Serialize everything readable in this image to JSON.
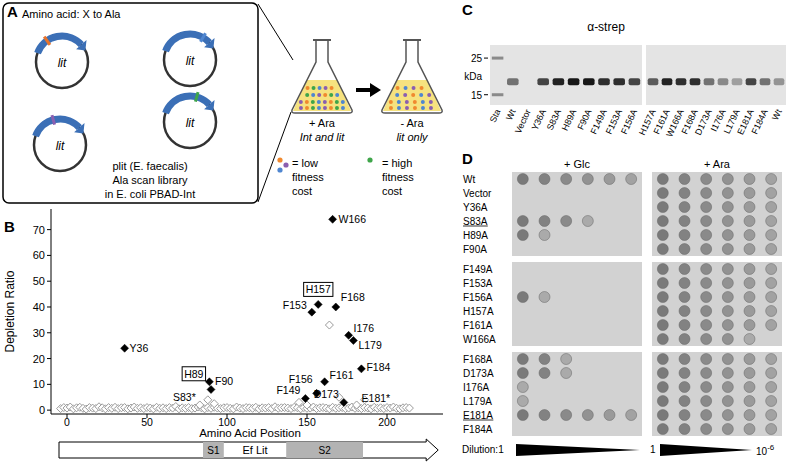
{
  "panel_labels": [
    "A",
    "B",
    "C",
    "D"
  ],
  "panel_a": {
    "header": "Amino acid: X to Ala",
    "plasmid_gene": "lit",
    "mutation_colors": [
      "#e8742c",
      "#4f86d0",
      "#8a5fb0",
      "#3fa54a"
    ],
    "caption": [
      "plit (E. faecalis)",
      "Ala scan library",
      "in E. coli PBAD-Int"
    ],
    "flasks": [
      {
        "condition": "+ Ara",
        "contents": "Int and lit"
      },
      {
        "condition": "- Ara",
        "contents": "lit only"
      }
    ],
    "liquid_color": "#f6e27f",
    "legend": [
      {
        "colors": [
          "#f0892f",
          "#8a5fb0",
          "#4f86d0"
        ],
        "text": [
          "= low",
          "fitness",
          "cost"
        ]
      },
      {
        "colors": [
          "#3fa54a"
        ],
        "text": [
          "= high",
          "fitness",
          "cost"
        ]
      }
    ]
  },
  "chart_data": {
    "type": "scatter",
    "y_label": "Depletion Ratio",
    "x_label": "Amino Acid Position",
    "xlim": [
      -10,
      235
    ],
    "xticks": [
      0,
      50,
      100,
      150,
      200
    ],
    "ylim": [
      -1.5,
      78
    ],
    "yticks": [
      0,
      10,
      20,
      30,
      40,
      50,
      60,
      70
    ],
    "grid": false,
    "series": [
      {
        "color": "#000000",
        "marker": "diamond",
        "x": [
          36,
          90,
          149,
          153,
          156,
          161,
          166,
          168,
          173,
          176,
          179,
          184
        ],
        "values": [
          24,
          8,
          4.5,
          38,
          6.5,
          11,
          74,
          40,
          3,
          29,
          27,
          16
        ],
        "point_labels": [
          "Y36",
          "F90",
          "F149",
          "F153",
          "F156",
          "F161",
          "W166",
          "F168",
          "D173",
          "I176",
          "L179",
          "F184"
        ]
      },
      {
        "color": "#000000",
        "marker": "diamond",
        "label_frame": true,
        "x": [
          89,
          157
        ],
        "values": [
          11,
          41
        ],
        "point_labels": [
          "H89",
          "H157"
        ]
      },
      {
        "color": "#9a9a9a",
        "marker": "diamond-open",
        "x": [
          83,
          181
        ],
        "values": [
          2,
          2
        ],
        "point_labels": [
          "S83*",
          "E181*"
        ]
      },
      {
        "color": "#9a9a9a",
        "marker": "diamond-open",
        "x": [
          -4,
          -2,
          0,
          2,
          4,
          6,
          8,
          10,
          12,
          14,
          16,
          18,
          20,
          22,
          24,
          26,
          28,
          30,
          32,
          34,
          36,
          38,
          40,
          42,
          44,
          46,
          48,
          50,
          52,
          54,
          56,
          58,
          60,
          62,
          64,
          66,
          68,
          70,
          72,
          74,
          76,
          78,
          80,
          82,
          84,
          86,
          88,
          90,
          92,
          94,
          96,
          98,
          100,
          102,
          104,
          106,
          108,
          110,
          112,
          114,
          116,
          118,
          120,
          122,
          124,
          126,
          128,
          130,
          132,
          134,
          136,
          138,
          140,
          142,
          144,
          146,
          148,
          150,
          152,
          154,
          156,
          158,
          160,
          162,
          164,
          166,
          168,
          170,
          172,
          174,
          176,
          178,
          180,
          182,
          184,
          186,
          188,
          190,
          192,
          194,
          196,
          198,
          200,
          202,
          204,
          206,
          208,
          210,
          212,
          214,
          88,
          92,
          145,
          150,
          164,
          170,
          186
        ],
        "values": [
          0.6,
          1.0,
          0.8,
          1.2,
          0.5,
          0.9,
          1.1,
          0.7,
          0.4,
          1.0,
          0.8,
          0.6,
          1.3,
          0.9,
          0.5,
          1.0,
          0.7,
          1.1,
          0.6,
          0.9,
          1.0,
          0.5,
          0.8,
          1.2,
          0.7,
          0.9,
          0.6,
          1.0,
          0.8,
          0.5,
          1.1,
          0.7,
          0.9,
          0.6,
          1.0,
          0.8,
          1.4,
          0.5,
          0.9,
          0.7,
          1.0,
          0.6,
          0.8,
          1.2,
          0.9,
          0.5,
          1.0,
          0.7,
          1.1,
          0.8,
          0.6,
          0.9,
          1.0,
          0.7,
          0.5,
          1.2,
          0.8,
          0.6,
          1.0,
          0.9,
          0.7,
          1.1,
          0.5,
          0.9,
          0.8,
          1.0,
          0.6,
          1.3,
          0.7,
          0.9,
          1.0,
          0.8,
          0.6,
          1.1,
          0.9,
          0.5,
          1.0,
          0.7,
          0.8,
          1.2,
          0.6,
          0.9,
          1.0,
          0.8,
          0.5,
          1.1,
          0.7,
          0.9,
          1.0,
          0.6,
          0.8,
          1.2,
          0.7,
          0.9,
          0.6,
          1.0,
          0.8,
          0.5,
          1.1,
          0.7,
          0.9,
          0.6,
          1.0,
          0.8,
          1.2,
          0.7,
          0.5,
          0.9,
          1.0,
          0.8,
          4,
          2.5,
          3,
          2,
          33,
          5,
          4
        ]
      }
    ],
    "protein": {
      "label": "Ef Lit",
      "span": [
        -5,
        232
      ],
      "domains": [
        {
          "label": "S1",
          "span": [
            85,
            98
          ]
        },
        {
          "label": "S2",
          "span": [
            137,
            185
          ]
        }
      ]
    }
  },
  "panel_c": {
    "title": "α-strep",
    "kda_unit": "kDa",
    "kda_lim": [
      30,
      13
    ],
    "markers": [
      25,
      15
    ],
    "band_kda": 18,
    "gels": [
      {
        "lanes": [
          "Sta",
          "Wt",
          "Vector",
          "Y36A",
          "S83A",
          "H89A",
          "F90A",
          "F149A",
          "F153A",
          "F156A"
        ],
        "intensity": [
          null,
          0.5,
          0,
          0.7,
          0.85,
          0.9,
          0.9,
          0.8,
          0.8,
          0.7
        ]
      },
      {
        "lanes": [
          "H157A",
          "F161A",
          "W166A",
          "F168A",
          "D173A",
          "I176A",
          "L179A",
          "E181A",
          "F184A",
          "Wt"
        ],
        "intensity": [
          0.6,
          0.85,
          0.8,
          0.8,
          0.5,
          0.4,
          0.3,
          0.7,
          0.5,
          0.35
        ]
      }
    ]
  },
  "panel_d": {
    "conditions": [
      "+ Glc",
      "+ Ara"
    ],
    "dilution_steps": 6,
    "dilution_labels": [
      "Dilution:1",
      "1"
    ],
    "dilution_end": {
      "base": "10",
      "exp": "-6"
    },
    "blocks": [
      [
        {
          "strain": "Wt",
          "growth": [
            6,
            6
          ]
        },
        {
          "strain": "Vector",
          "growth": [
            0,
            6
          ]
        },
        {
          "strain": "Y36A",
          "growth": [
            0,
            6
          ]
        },
        {
          "strain": "S83A",
          "growth": [
            4,
            6
          ],
          "underlined": true
        },
        {
          "strain": "H89A",
          "growth": [
            2,
            6
          ]
        },
        {
          "strain": "F90A",
          "growth": [
            0,
            6
          ]
        }
      ],
      [
        {
          "strain": "F149A",
          "growth": [
            0,
            6
          ]
        },
        {
          "strain": "F153A",
          "growth": [
            0,
            6
          ]
        },
        {
          "strain": "F156A",
          "growth": [
            2,
            6
          ]
        },
        {
          "strain": "H157A",
          "growth": [
            0,
            6
          ]
        },
        {
          "strain": "F161A",
          "growth": [
            0,
            6
          ]
        },
        {
          "strain": "W166A",
          "growth": [
            0,
            5
          ]
        }
      ],
      [
        {
          "strain": "F168A",
          "growth": [
            3,
            6
          ]
        },
        {
          "strain": "D173A",
          "growth": [
            3,
            6
          ]
        },
        {
          "strain": "I176A",
          "growth": [
            1,
            6
          ]
        },
        {
          "strain": "L179A",
          "growth": [
            1,
            6
          ]
        },
        {
          "strain": "E181A",
          "growth": [
            6,
            6
          ],
          "underlined": true
        },
        {
          "strain": "F184A",
          "growth": [
            0,
            6
          ]
        }
      ]
    ]
  }
}
